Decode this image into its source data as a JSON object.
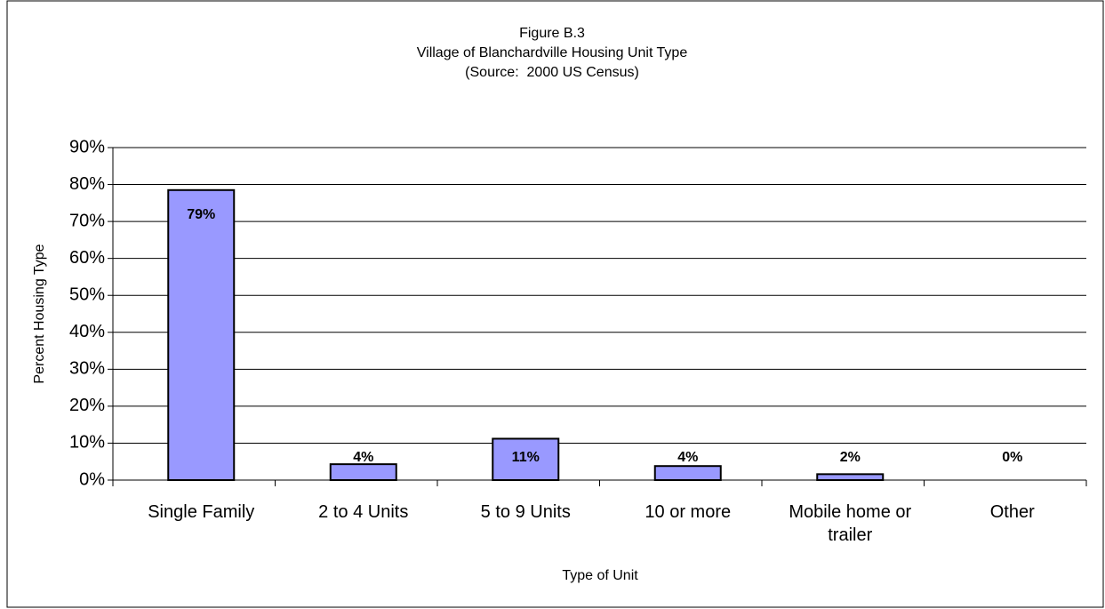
{
  "chart_data": {
    "type": "bar",
    "title": "Figure B.3",
    "subtitle": "Village of Blanchardville Housing Unit Type",
    "source": "(Source:  2000 US Census)",
    "x_label": "Type of Unit",
    "y_label": "Percent Housing Type",
    "categories": [
      "Single Family",
      "2 to 4 Units",
      "5 to 9 Units",
      "10 or more",
      "Mobile home or trailer",
      "Other"
    ],
    "values": [
      78.5,
      4.3,
      11.2,
      3.8,
      1.6,
      0
    ],
    "value_labels": [
      "79%",
      "4%",
      "11%",
      "4%",
      "2%",
      "0%"
    ],
    "color": "#9999ff",
    "ylim": [
      0,
      90
    ],
    "yticks": [
      {
        "value": 0,
        "label": "0%"
      },
      {
        "value": 10,
        "label": "10%"
      },
      {
        "value": 20,
        "label": "20%"
      },
      {
        "value": 30,
        "label": "30%"
      },
      {
        "value": 40,
        "label": "40%"
      },
      {
        "value": 50,
        "label": "50%"
      },
      {
        "value": 60,
        "label": "60%"
      },
      {
        "value": 70,
        "label": "70%"
      },
      {
        "value": 80,
        "label": "80%"
      },
      {
        "value": 90,
        "label": "90%"
      }
    ],
    "grid": true
  }
}
